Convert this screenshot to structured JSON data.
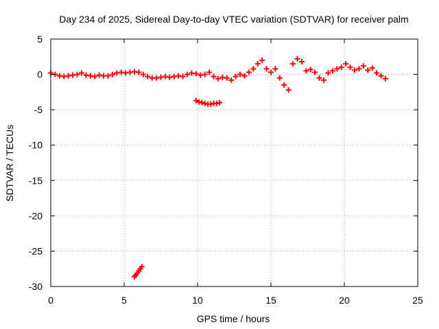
{
  "chart_data": {
    "type": "scatter",
    "title": "Day 234 of 2025, Sidereal Day-to-day VTEC variation (SDTVAR) for receiver palm",
    "xlabel": "GPS time / hours",
    "ylabel": "SDTVAR / TECUs",
    "xlim": [
      0,
      25
    ],
    "ylim": [
      -30,
      5
    ],
    "xticks": [
      0,
      5,
      10,
      15,
      20,
      25
    ],
    "yticks": [
      5,
      0,
      -5,
      -10,
      -15,
      -20,
      -25,
      -30
    ],
    "grid": true,
    "marker": "+",
    "series_color": "#ff0000",
    "series": [
      {
        "name": "SDTVAR",
        "x": [
          0.0,
          0.3,
          0.6,
          0.9,
          1.2,
          1.5,
          1.8,
          2.1,
          2.4,
          2.7,
          3.0,
          3.3,
          3.6,
          3.9,
          4.2,
          4.5,
          4.8,
          5.1,
          5.4,
          5.7,
          6.0,
          6.3,
          6.6,
          6.9,
          7.2,
          7.5,
          7.8,
          8.1,
          8.4,
          8.7,
          9.0,
          9.3,
          9.6,
          9.9,
          10.2,
          10.5,
          10.8,
          11.1,
          11.4,
          11.7,
          12.0,
          12.3,
          12.6,
          12.9,
          13.2,
          13.5,
          13.8,
          14.1,
          14.4,
          14.7,
          15.0,
          15.3,
          15.6,
          15.9,
          16.2,
          16.5,
          16.8,
          17.1,
          17.4,
          17.7,
          18.0,
          18.3,
          18.6,
          18.9,
          19.2,
          19.5,
          19.8,
          20.1,
          20.4,
          20.7,
          21.0,
          21.3,
          21.6,
          21.9,
          22.2,
          22.5,
          22.8,
          9.9,
          10.1,
          10.3,
          10.5,
          10.7,
          10.9,
          11.1,
          11.3,
          11.5,
          5.7,
          5.8,
          5.9,
          6.0,
          6.1,
          6.2
        ],
        "y": [
          0.2,
          0.0,
          -0.2,
          -0.3,
          -0.2,
          -0.1,
          0.0,
          0.2,
          -0.1,
          -0.2,
          -0.3,
          -0.1,
          -0.2,
          -0.2,
          0.0,
          0.2,
          0.3,
          0.2,
          0.3,
          0.4,
          0.3,
          0.0,
          -0.3,
          -0.5,
          -0.5,
          -0.4,
          -0.3,
          -0.4,
          -0.3,
          -0.2,
          -0.3,
          0.0,
          0.2,
          0.1,
          -0.1,
          0.0,
          0.3,
          -0.3,
          -0.6,
          -0.4,
          -0.5,
          -0.8,
          -0.3,
          0.0,
          -0.2,
          0.3,
          0.8,
          1.5,
          2.0,
          0.8,
          0.3,
          0.8,
          -0.5,
          -1.5,
          -2.2,
          1.5,
          2.2,
          1.8,
          0.5,
          0.7,
          0.3,
          -0.5,
          -0.8,
          0.2,
          0.5,
          0.8,
          1.0,
          1.5,
          1.0,
          0.6,
          0.8,
          1.2,
          0.6,
          0.9,
          0.2,
          -0.2,
          -0.6,
          -3.7,
          -3.9,
          -4.0,
          -4.1,
          -4.2,
          -4.2,
          -4.1,
          -4.1,
          -4.0,
          -28.6,
          -28.4,
          -28.1,
          -27.8,
          -27.5,
          -27.2
        ]
      }
    ]
  }
}
